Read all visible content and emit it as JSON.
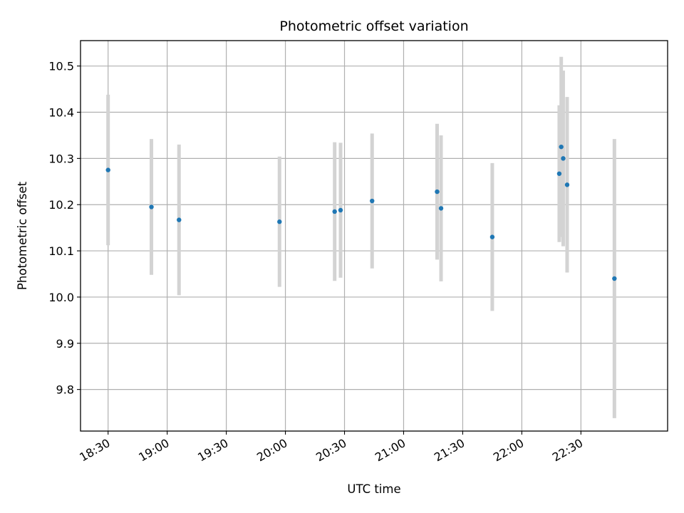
{
  "chart_data": {
    "type": "scatter",
    "title": "Photometric offset variation",
    "xlabel": "UTC time",
    "ylabel": "Photometric offset",
    "xlim": [
      "18:16",
      "23:14"
    ],
    "ylim": [
      9.71,
      10.555
    ],
    "grid": true,
    "x_ticks": [
      "18:30",
      "19:00",
      "19:30",
      "20:00",
      "20:30",
      "21:00",
      "21:30",
      "22:00",
      "22:30"
    ],
    "y_ticks": [
      "9.8",
      "9.9",
      "10.0",
      "10.1",
      "10.2",
      "10.3",
      "10.4",
      "10.5"
    ],
    "series": [
      {
        "name": "photometric offset",
        "marker_color": "#1f77b4",
        "errorbar_color": "#d3d3d3",
        "points": [
          {
            "t": "18:30",
            "y": 10.275,
            "err": 0.163
          },
          {
            "t": "18:52",
            "y": 10.195,
            "err": 0.147
          },
          {
            "t": "19:06",
            "y": 10.167,
            "err": 0.163
          },
          {
            "t": "19:57",
            "y": 10.163,
            "err": 0.141
          },
          {
            "t": "20:25",
            "y": 10.185,
            "err": 0.15
          },
          {
            "t": "20:28",
            "y": 10.188,
            "err": 0.146
          },
          {
            "t": "20:44",
            "y": 10.208,
            "err": 0.146
          },
          {
            "t": "21:17",
            "y": 10.228,
            "err": 0.147
          },
          {
            "t": "21:19",
            "y": 10.192,
            "err": 0.158
          },
          {
            "t": "21:45",
            "y": 10.13,
            "err": 0.16
          },
          {
            "t": "22:19",
            "y": 10.267,
            "err": 0.148
          },
          {
            "t": "22:20",
            "y": 10.325,
            "err": 0.195
          },
          {
            "t": "22:21",
            "y": 10.3,
            "err": 0.19
          },
          {
            "t": "22:23",
            "y": 10.243,
            "err": 0.19
          },
          {
            "t": "22:47",
            "y": 10.04,
            "err": 0.302
          }
        ]
      }
    ]
  }
}
